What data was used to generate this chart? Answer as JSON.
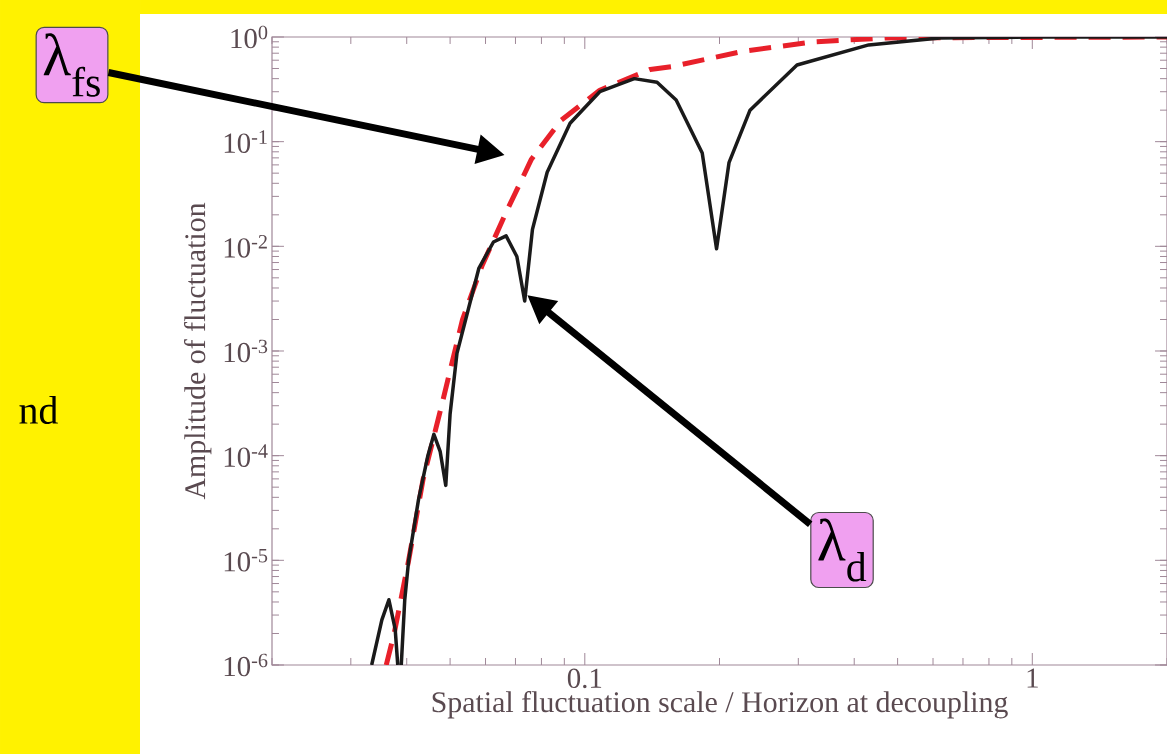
{
  "chart_data": {
    "type": "line",
    "xlabel": "Spatial fluctuation scale / Horizon at decoupling",
    "ylabel": "Amplitude of fluctuation",
    "log": "xy",
    "grid": false,
    "marker": "none",
    "xlim": [
      0.02,
      2
    ],
    "xticks": [
      0.1,
      1
    ],
    "ylim": [
      1e-06,
      1
    ],
    "yticks": [
      {
        "value": 1e-06,
        "label": "10$^{-6}$"
      },
      {
        "value": 1e-05,
        "label": "10$^{-5}$"
      },
      {
        "value": 0.0001,
        "label": "10$^{-4}$"
      },
      {
        "value": 0.001,
        "label": "10$^{-3}$"
      },
      {
        "value": 0.01,
        "label": "10$^{-2}$"
      },
      {
        "value": 0.1,
        "label": "10$^{-1}$"
      },
      {
        "value": 1,
        "label": "10$^{0}$"
      }
    ],
    "series": [
      {
        "color": "#e8202a",
        "line_style": "dashed",
        "x": [
          0.036,
          0.0375,
          0.0404,
          0.0435,
          0.0482,
          0.0533,
          0.059,
          0.067,
          0.076,
          0.0885,
          0.108,
          0.14,
          0.156,
          0.226,
          0.326,
          0.472,
          2
        ],
        "values": [
          1e-06,
          2e-06,
          1e-05,
          5.9e-05,
          0.00034,
          0.002,
          0.0066,
          0.022,
          0.068,
          0.16,
          0.31,
          0.49,
          0.52,
          0.73,
          0.9,
          0.98,
          1
        ]
      },
      {
        "color": "#1a1a1a",
        "line_style": "solid",
        "x": [
          0.0334,
          0.0352,
          0.0365,
          0.0377,
          0.0382,
          0.0386,
          0.0389,
          0.0396,
          0.0404,
          0.0425,
          0.0446,
          0.046,
          0.0475,
          0.0489,
          0.05,
          0.0518,
          0.058,
          0.0625,
          0.0667,
          0.0705,
          0.0734,
          0.0764,
          0.0824,
          0.0927,
          0.108,
          0.129,
          0.145,
          0.16,
          0.183,
          0.197,
          0.21,
          0.234,
          0.298,
          0.431,
          0.621,
          1,
          2
        ],
        "values": [
          1e-06,
          2.7e-06,
          4.2e-06,
          2.2e-06,
          1e-06,
          null,
          1e-06,
          4.2e-06,
          1e-05,
          3.8e-05,
          0.0001,
          0.00016,
          0.00011,
          5.2e-05,
          0.00025,
          0.00095,
          0.0062,
          0.011,
          0.0126,
          0.008,
          0.003,
          0.0145,
          0.051,
          0.15,
          0.3,
          0.4,
          0.37,
          0.25,
          0.078,
          0.0095,
          0.063,
          0.2,
          0.54,
          0.84,
          0.98,
          1,
          1
        ]
      }
    ],
    "annotations": [
      "λ$_{fs}$",
      "λ$_{d}$",
      "nd"
    ]
  }
}
